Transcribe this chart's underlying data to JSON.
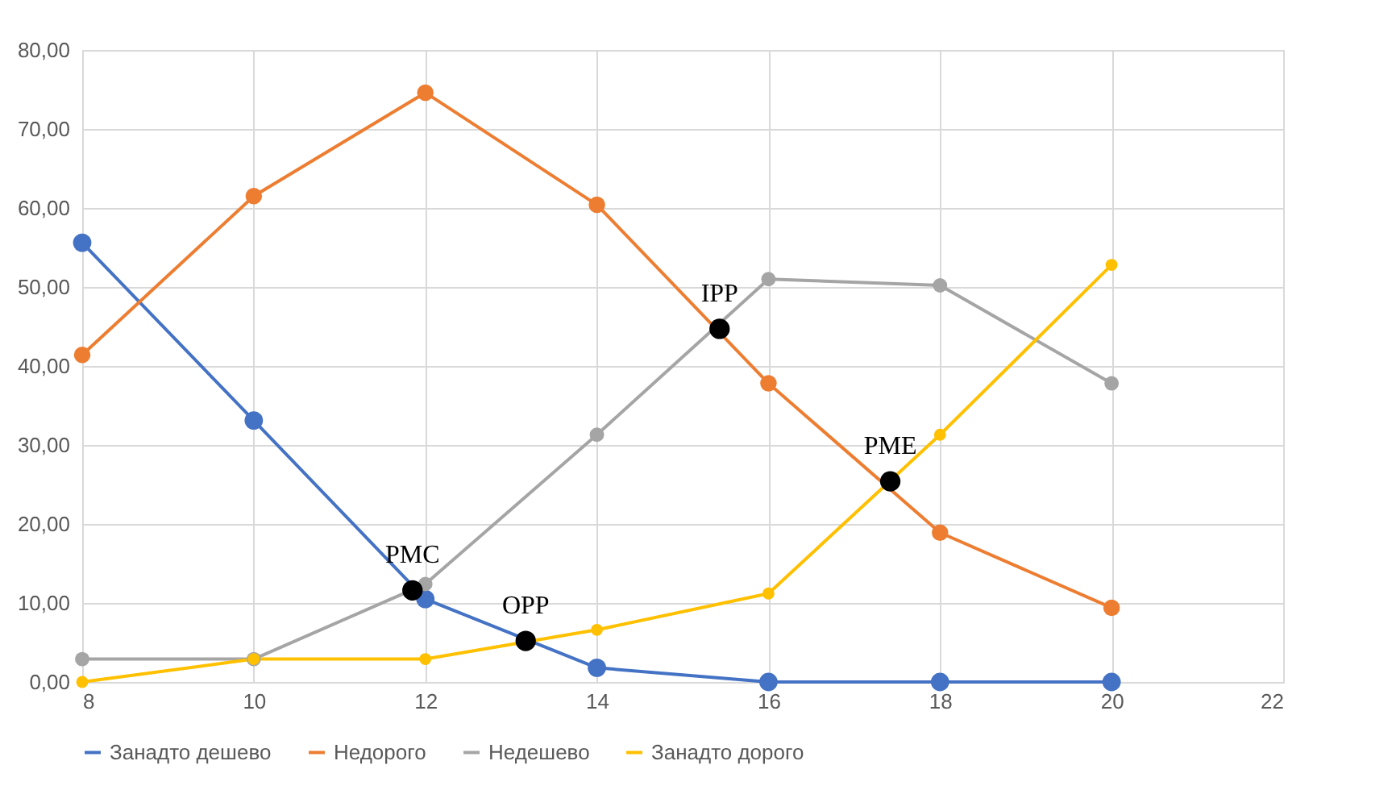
{
  "chart_data": {
    "type": "line",
    "x": [
      8,
      10,
      12,
      14,
      16,
      18,
      20
    ],
    "series": [
      {
        "name": "Занадто дешево",
        "color": "#4472c4",
        "values": [
          55.6,
          33.1,
          10.5,
          1.8,
          0,
          0,
          0
        ]
      },
      {
        "name": "Недорого",
        "color": "#ed7d31",
        "values": [
          41.4,
          61.5,
          74.6,
          60.4,
          37.8,
          18.9,
          9.4
        ]
      },
      {
        "name": "Недешево",
        "color": "#a5a5a5",
        "values": [
          2.9,
          2.9,
          12.4,
          31.3,
          51.0,
          50.2,
          37.8
        ]
      },
      {
        "name": "Занадто дорого",
        "color": "#ffc000",
        "values": [
          0,
          2.9,
          2.9,
          6.6,
          11.2,
          31.3,
          52.8
        ]
      },
      {
        "type": "scatter",
        "color": "#000000",
        "x": [
          11.85,
          13.17,
          15.43,
          17.42
        ],
        "values": [
          11.6,
          5.2,
          44.7,
          25.4
        ]
      }
    ],
    "annotations": [
      {
        "text": "PMC",
        "x": 11.85,
        "y": 11.6
      },
      {
        "text": "OPP",
        "x": 13.17,
        "y": 5.2
      },
      {
        "text": "IPP",
        "x": 15.43,
        "y": 44.7
      },
      {
        "text": "PME",
        "x": 17.42,
        "y": 25.4
      }
    ],
    "xlim": [
      8,
      22
    ],
    "xticks": [
      8,
      10,
      12,
      14,
      16,
      18,
      20,
      22
    ],
    "ylim": [
      0,
      80
    ],
    "yticks": [
      {
        "value": 0,
        "label": "0,00"
      },
      {
        "value": 10,
        "label": "10,00"
      },
      {
        "value": 20,
        "label": "20,00"
      },
      {
        "value": 30,
        "label": "30,00"
      },
      {
        "value": 40,
        "label": "40,00"
      },
      {
        "value": 50,
        "label": "50,00"
      },
      {
        "value": 60,
        "label": "60,00"
      },
      {
        "value": 70,
        "label": "70,00"
      },
      {
        "value": 80,
        "label": "80,00"
      }
    ],
    "grid": true,
    "legend": "bottom",
    "marker": "circle",
    "line_style": "solid"
  }
}
